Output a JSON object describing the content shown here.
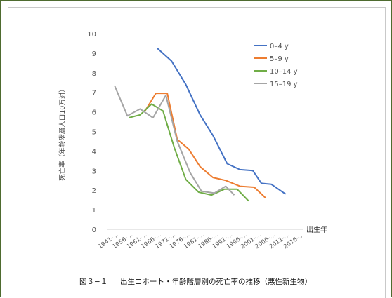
{
  "chart_data": {
    "type": "line",
    "categories": [
      "1941-...",
      "1956-...",
      "1961-...",
      "1966-...",
      "1971-...",
      "1976-...",
      "1981-...",
      "1986-...",
      "1991-...",
      "1996-...",
      "2001-...",
      "2006-...",
      "2011-...",
      "2016-..."
    ],
    "x_positions": [
      0,
      1,
      2,
      3,
      4,
      5,
      6,
      7,
      8,
      9,
      10,
      11,
      12,
      13
    ],
    "series": [
      {
        "name": "0–4 y",
        "color": "#4472c4",
        "points": [
          [
            3.0,
            9.25
          ],
          [
            4.0,
            8.6
          ],
          [
            5.0,
            7.4
          ],
          [
            6.0,
            5.85
          ],
          [
            6.9,
            4.8
          ],
          [
            7.9,
            3.35
          ],
          [
            8.8,
            3.05
          ],
          [
            9.7,
            3.0
          ],
          [
            10.3,
            2.35
          ],
          [
            11.0,
            2.3
          ],
          [
            12.0,
            1.8
          ]
        ]
      },
      {
        "name": "5–9 y",
        "color": "#ed7d31",
        "points": [
          [
            2.1,
            6.0
          ],
          [
            2.9,
            6.95
          ],
          [
            3.7,
            6.95
          ],
          [
            4.4,
            4.6
          ],
          [
            5.2,
            4.1
          ],
          [
            6.0,
            3.2
          ],
          [
            6.9,
            2.65
          ],
          [
            7.8,
            2.5
          ],
          [
            8.8,
            2.2
          ],
          [
            9.8,
            2.15
          ],
          [
            10.6,
            1.6
          ]
        ]
      },
      {
        "name": "10–14 y",
        "color": "#70ad47",
        "points": [
          [
            1.0,
            5.7
          ],
          [
            1.8,
            5.85
          ],
          [
            2.6,
            6.4
          ],
          [
            3.4,
            6.05
          ],
          [
            4.2,
            4.15
          ],
          [
            5.0,
            2.55
          ],
          [
            5.9,
            1.9
          ],
          [
            6.8,
            1.75
          ],
          [
            7.7,
            2.05
          ],
          [
            8.6,
            2.05
          ],
          [
            9.4,
            1.45
          ]
        ]
      },
      {
        "name": "15–19 y",
        "color": "#a5a5a5",
        "points": [
          [
            0.0,
            7.35
          ],
          [
            0.9,
            5.8
          ],
          [
            1.8,
            6.15
          ],
          [
            2.7,
            5.7
          ],
          [
            3.6,
            6.85
          ],
          [
            4.4,
            4.5
          ],
          [
            5.3,
            2.9
          ],
          [
            6.1,
            1.95
          ],
          [
            7.0,
            1.85
          ],
          [
            7.8,
            2.2
          ],
          [
            8.4,
            1.75
          ]
        ]
      }
    ],
    "ylabel": "死亡率（年齢階層人口10万対）",
    "xlabel": "出生年",
    "ylim": [
      0,
      10
    ],
    "yticks": [
      0,
      1,
      2,
      3,
      4,
      5,
      6,
      7,
      8,
      9,
      10
    ],
    "grid": false,
    "legend": "top-right"
  },
  "caption": {
    "number": "図３−１",
    "text": "出生コホート・年齢階層別の死亡率の推移（悪性新生物）"
  }
}
